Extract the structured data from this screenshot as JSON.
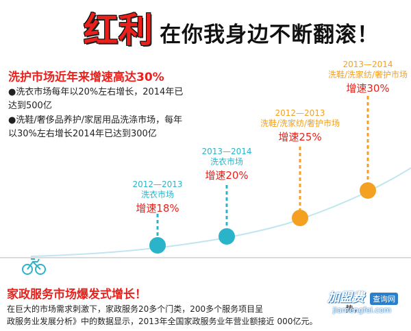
{
  "banner": {
    "title_big": "红利",
    "title_rest": "在你我身边不断翻滚！"
  },
  "left_panel": {
    "headline": "洗护市场近年来增速高达30%",
    "bullets": [
      "●洗衣市场每年以20%左右增长，2014年已达到500亿",
      "●洗鞋/奢侈品养护/家居用品洗涤市场，每年以30%左右增长2014年已达到300亿"
    ]
  },
  "milestones": [
    {
      "years": "2012—2013",
      "market": "洗衣市场",
      "growth": "增速18%"
    },
    {
      "years": "2013—2014",
      "market": "洗衣市场",
      "growth": "增速20%"
    },
    {
      "years": "2012—2013",
      "market": "洗鞋/洗家纺/奢护市场",
      "growth": "增速25%"
    },
    {
      "years": "2013—2014",
      "market": "洗鞋/洗家纺/奢护市场",
      "growth": "增速30%"
    }
  ],
  "colors": {
    "teal": "#2bb3c9",
    "orange": "#f4a020",
    "red": "#e8211c",
    "line": "#bfe6ee"
  },
  "icons": {
    "start": "bicycle-icon"
  },
  "bottom": {
    "title": "家政服务市场爆发式增长！",
    "line1": "在巨大的市场需求刺激下，家政服务20多个门类，200多个服务项目呈",
    "line1_tail": "势，",
    "line2": "政服务业发展分析》中的数据显示，2013年全国家政服务业年营业额接近",
    "line2_tail": "000亿元。"
  },
  "watermark": {
    "logo": "加盟费",
    "tag": "查询网",
    "url": "jiamengfei.com"
  }
}
